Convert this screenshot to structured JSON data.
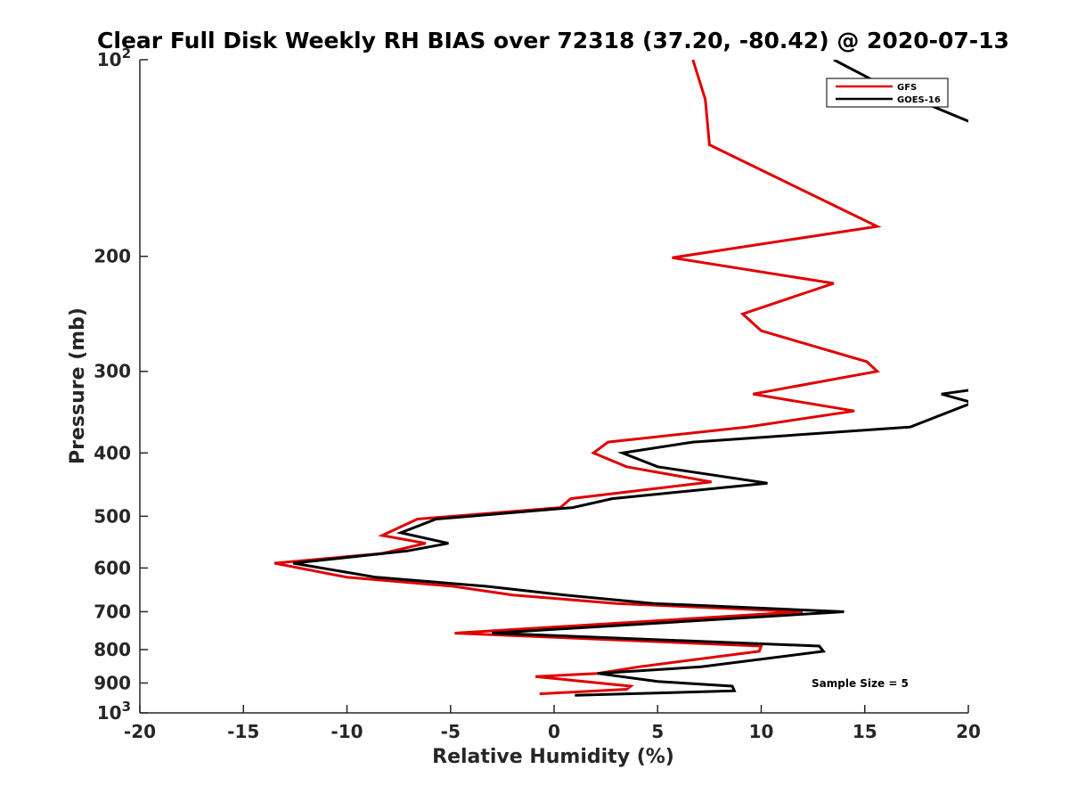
{
  "chart_data": {
    "type": "line",
    "title": "Clear Full Disk Weekly RH BIAS over 72318 (37.20, -80.42) @ 2020-07-13",
    "xlabel": "Relative Humidity (%)",
    "ylabel": "Pressure (mb)",
    "xlim": [
      -20,
      20
    ],
    "ylim": [
      100,
      1000
    ],
    "yscale": "log",
    "y_reversed": true,
    "grid": false,
    "legend_position": "top-right",
    "x_ticks": [
      "-20",
      "-15",
      "-10",
      "-5",
      "0",
      "5",
      "10",
      "15",
      "20"
    ],
    "y_ticks": [
      {
        "value": 100,
        "base": "10",
        "exp": "2"
      },
      {
        "value": 200,
        "label": "200"
      },
      {
        "value": 300,
        "label": "300"
      },
      {
        "value": 400,
        "label": "400"
      },
      {
        "value": 500,
        "label": "500"
      },
      {
        "value": 600,
        "label": "600"
      },
      {
        "value": 700,
        "label": "700"
      },
      {
        "value": 800,
        "label": "800"
      },
      {
        "value": 900,
        "label": "900"
      },
      {
        "value": 1000,
        "base": "10",
        "exp": "3"
      }
    ],
    "annotation": "Sample Size = 5",
    "series": [
      {
        "name": "GFS",
        "color": "#e00000",
        "points": [
          [
            6.7,
            100
          ],
          [
            7.3,
            115
          ],
          [
            7.5,
            135
          ],
          [
            15.6,
            180
          ],
          [
            5.7,
            201
          ],
          [
            13.5,
            220
          ],
          [
            9.1,
            245
          ],
          [
            10.0,
            260
          ],
          [
            15.1,
            290
          ],
          [
            15.6,
            300
          ],
          [
            9.6,
            325
          ],
          [
            14.5,
            345
          ],
          [
            9.3,
            365
          ],
          [
            2.6,
            385
          ],
          [
            1.9,
            400
          ],
          [
            3.5,
            420
          ],
          [
            7.6,
            443
          ],
          [
            0.8,
            470
          ],
          [
            0.3,
            485
          ],
          [
            -6.6,
            505
          ],
          [
            -8.3,
            535
          ],
          [
            -6.2,
            550
          ],
          [
            -8.3,
            570
          ],
          [
            -13.5,
            590
          ],
          [
            -10.0,
            620
          ],
          [
            -4.9,
            640
          ],
          [
            -2.0,
            660
          ],
          [
            3.0,
            680
          ],
          [
            12.0,
            700
          ],
          [
            -4.8,
            755
          ],
          [
            10.0,
            790
          ],
          [
            9.9,
            805
          ],
          [
            4.1,
            850
          ],
          [
            2.1,
            870
          ],
          [
            -0.9,
            880
          ],
          [
            3.7,
            910
          ],
          [
            3.5,
            920
          ],
          [
            -0.7,
            935
          ]
        ]
      },
      {
        "name": "GOES-16",
        "color": "#000000",
        "points": [
          [
            13.5,
            100
          ],
          [
            16.0,
            110
          ],
          [
            20.2,
            125
          ],
          [
            20.2,
            270
          ],
          [
            20.2,
            320
          ],
          [
            18.7,
            325
          ],
          [
            20.2,
            335
          ],
          [
            17.2,
            365
          ],
          [
            6.7,
            385
          ],
          [
            3.3,
            400
          ],
          [
            5.0,
            420
          ],
          [
            10.3,
            445
          ],
          [
            2.8,
            470
          ],
          [
            0.9,
            485
          ],
          [
            -5.7,
            505
          ],
          [
            -7.4,
            530
          ],
          [
            -5.1,
            550
          ],
          [
            -7.1,
            565
          ],
          [
            -12.6,
            590
          ],
          [
            -8.6,
            620
          ],
          [
            -3.3,
            640
          ],
          [
            0.5,
            660
          ],
          [
            4.8,
            680
          ],
          [
            14.0,
            700
          ],
          [
            -3.0,
            755
          ],
          [
            12.8,
            790
          ],
          [
            13.0,
            805
          ],
          [
            7.1,
            850
          ],
          [
            2.1,
            870
          ],
          [
            5.0,
            895
          ],
          [
            8.6,
            910
          ],
          [
            8.7,
            925
          ],
          [
            1.0,
            940
          ]
        ]
      }
    ]
  }
}
